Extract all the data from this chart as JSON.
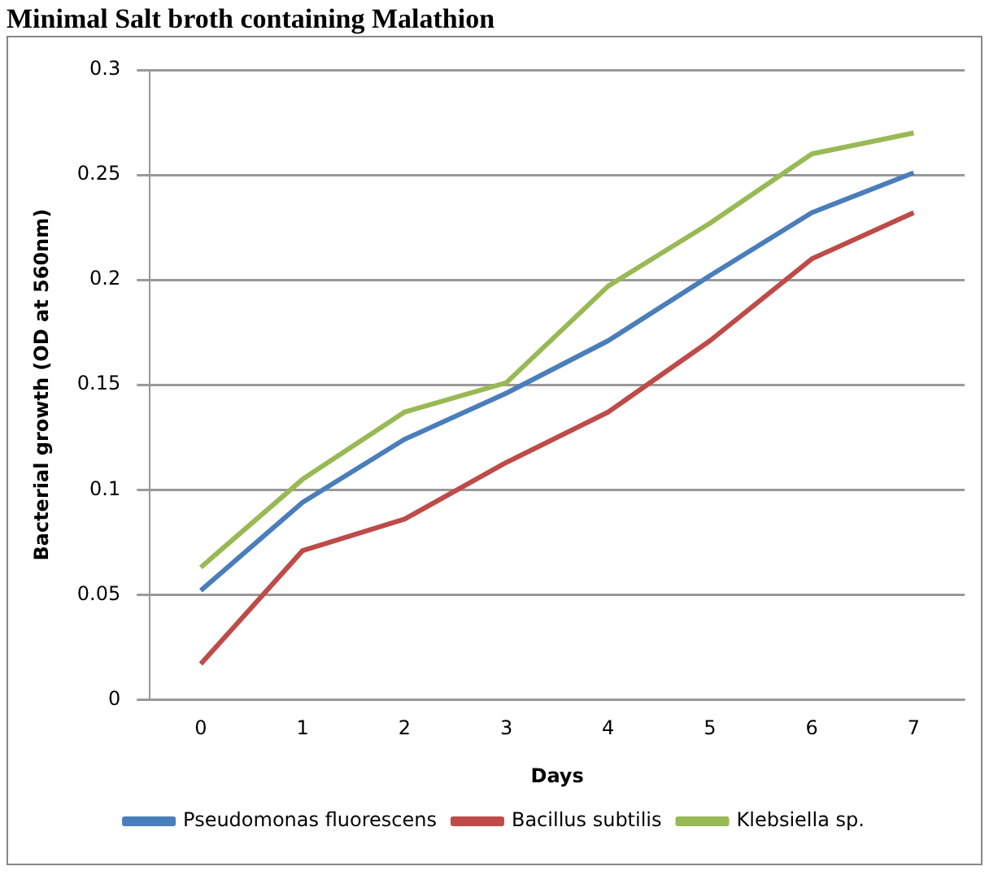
{
  "chart_data": {
    "type": "line",
    "title": "Minimal Salt broth containing Malathion",
    "xlabel": "Days",
    "ylabel": "Bacterial growth (OD at 560nm)",
    "categories": [
      "0",
      "1",
      "2",
      "3",
      "4",
      "5",
      "6",
      "7"
    ],
    "series": [
      {
        "name": "Pseudomonas fluorescens",
        "color": "#4a7ebb",
        "values": [
          0.052,
          0.094,
          0.124,
          0.146,
          0.171,
          0.202,
          0.232,
          0.251
        ]
      },
      {
        "name": "Bacillus subtilis",
        "color": "#be4b48",
        "values": [
          0.017,
          0.071,
          0.086,
          0.113,
          0.137,
          0.171,
          0.21,
          0.232
        ]
      },
      {
        "name": "Klebsiella sp.",
        "color": "#98b954",
        "values": [
          0.063,
          0.105,
          0.137,
          0.151,
          0.197,
          0.227,
          0.26,
          0.27
        ]
      }
    ],
    "ylim": [
      0,
      0.3
    ],
    "yticks": [
      0,
      0.05,
      0.1,
      0.15,
      0.2,
      0.25,
      0.3
    ],
    "grid": "y",
    "legend": "bottom",
    "marker": "none",
    "line_style": "solid"
  }
}
